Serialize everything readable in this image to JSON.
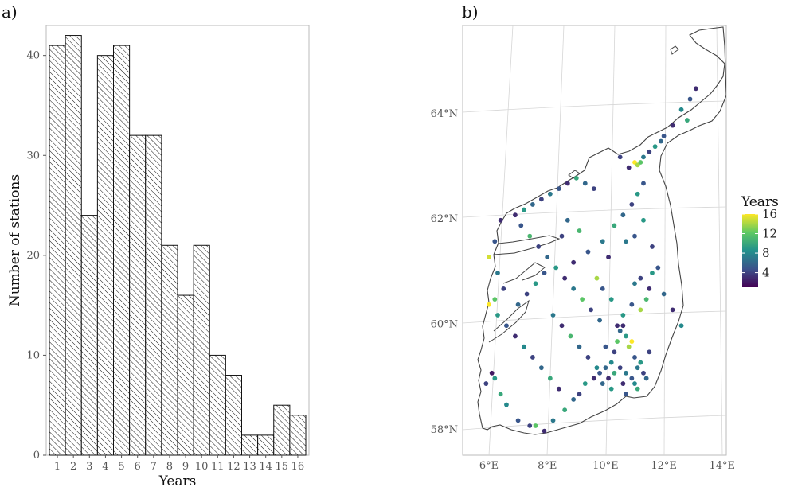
{
  "panels": {
    "a": {
      "label": "a)",
      "chart_data": {
        "type": "bar",
        "title": "",
        "xlabel": "Years",
        "ylabel": "Number of stations",
        "categories": [
          "1",
          "2",
          "3",
          "4",
          "5",
          "6",
          "7",
          "8",
          "9",
          "10",
          "11",
          "12",
          "13",
          "14",
          "15",
          "16"
        ],
        "values": [
          41,
          42,
          24,
          40,
          41,
          32,
          32,
          21,
          16,
          21,
          10,
          8,
          2,
          2,
          5,
          4
        ],
        "yticks": [
          "0",
          "10",
          "20",
          "30",
          "40"
        ],
        "ylim": [
          0,
          43
        ],
        "bar_fill": "hatched",
        "grid": false
      }
    },
    "b": {
      "label": "b)",
      "chart_data": {
        "type": "scatter",
        "map": true,
        "legend_title": "Years",
        "legend_ticks": [
          "16",
          "12",
          "8",
          "4"
        ],
        "legend_placement": "right",
        "color_scale": [
          "#440154",
          "#3b528b",
          "#21918c",
          "#5ec962",
          "#fde725"
        ],
        "color_range": [
          1,
          16
        ],
        "lon_ticks": [
          "6°E",
          "8°E",
          "10°E",
          "12°E",
          "14°E"
        ],
        "lat_ticks": [
          "58°N",
          "60°N",
          "62°N",
          "64°N"
        ],
        "lon_range": [
          5,
          15
        ],
        "lat_range": [
          57.5,
          65.5
        ],
        "points": [
          [
            6.1,
            59.0,
            2
          ],
          [
            6.2,
            58.9,
            9
          ],
          [
            5.9,
            58.8,
            4
          ],
          [
            6.4,
            58.6,
            10
          ],
          [
            6.6,
            58.4,
            8
          ],
          [
            7.0,
            58.1,
            5
          ],
          [
            7.4,
            58.0,
            4
          ],
          [
            7.6,
            58.0,
            12
          ],
          [
            7.9,
            57.9,
            3
          ],
          [
            8.2,
            58.1,
            7
          ],
          [
            8.6,
            58.3,
            10
          ],
          [
            8.9,
            58.5,
            6
          ],
          [
            9.1,
            58.6,
            4
          ],
          [
            9.3,
            58.8,
            9
          ],
          [
            9.6,
            58.9,
            3
          ],
          [
            9.8,
            59.0,
            5
          ],
          [
            10.0,
            59.1,
            6
          ],
          [
            10.2,
            59.2,
            8
          ],
          [
            10.3,
            59.4,
            4
          ],
          [
            10.4,
            59.6,
            12
          ],
          [
            10.5,
            59.8,
            6
          ],
          [
            10.6,
            59.9,
            3
          ],
          [
            10.7,
            59.7,
            9
          ],
          [
            10.8,
            59.5,
            14
          ],
          [
            10.9,
            59.6,
            16
          ],
          [
            11.0,
            59.3,
            5
          ],
          [
            11.1,
            59.1,
            7
          ],
          [
            11.2,
            59.2,
            9
          ],
          [
            11.3,
            59.0,
            4
          ],
          [
            11.4,
            58.9,
            6
          ],
          [
            10.1,
            58.9,
            3
          ],
          [
            10.3,
            59.0,
            10
          ],
          [
            10.5,
            59.1,
            4
          ],
          [
            10.7,
            59.0,
            7
          ],
          [
            10.9,
            58.9,
            5
          ],
          [
            11.0,
            58.8,
            8
          ],
          [
            10.6,
            58.8,
            3
          ],
          [
            10.2,
            58.7,
            9
          ],
          [
            9.9,
            58.8,
            6
          ],
          [
            10.0,
            59.5,
            5
          ],
          [
            10.4,
            59.9,
            3
          ],
          [
            10.6,
            60.1,
            9
          ],
          [
            10.9,
            60.3,
            5
          ],
          [
            11.2,
            60.2,
            14
          ],
          [
            11.4,
            60.4,
            11
          ],
          [
            11.5,
            60.6,
            3
          ],
          [
            11.0,
            60.7,
            7
          ],
          [
            11.2,
            60.8,
            4
          ],
          [
            11.6,
            60.9,
            9
          ],
          [
            11.8,
            61.0,
            5
          ],
          [
            9.8,
            60.0,
            6
          ],
          [
            9.5,
            60.2,
            4
          ],
          [
            9.2,
            60.4,
            12
          ],
          [
            8.9,
            60.6,
            7
          ],
          [
            8.6,
            60.8,
            3
          ],
          [
            8.3,
            61.0,
            9
          ],
          [
            8.0,
            61.2,
            6
          ],
          [
            7.7,
            61.4,
            4
          ],
          [
            7.4,
            61.6,
            11
          ],
          [
            7.1,
            61.8,
            5
          ],
          [
            6.9,
            62.0,
            3
          ],
          [
            7.2,
            62.1,
            9
          ],
          [
            7.5,
            62.2,
            6
          ],
          [
            7.8,
            62.3,
            4
          ],
          [
            8.1,
            62.4,
            7
          ],
          [
            8.4,
            62.5,
            5
          ],
          [
            8.7,
            62.6,
            3
          ],
          [
            9.0,
            62.7,
            10
          ],
          [
            9.3,
            62.6,
            6
          ],
          [
            9.6,
            62.5,
            4
          ],
          [
            6.4,
            61.9,
            3
          ],
          [
            6.2,
            61.5,
            5
          ],
          [
            6.0,
            61.2,
            15
          ],
          [
            6.3,
            60.9,
            7
          ],
          [
            6.5,
            60.6,
            4
          ],
          [
            6.2,
            60.4,
            12
          ],
          [
            6.0,
            60.3,
            16
          ],
          [
            6.3,
            60.1,
            9
          ],
          [
            6.6,
            59.9,
            5
          ],
          [
            6.9,
            59.7,
            3
          ],
          [
            7.2,
            59.5,
            8
          ],
          [
            7.5,
            59.3,
            4
          ],
          [
            7.8,
            59.1,
            6
          ],
          [
            8.1,
            58.9,
            10
          ],
          [
            8.4,
            58.7,
            3
          ],
          [
            7.0,
            60.3,
            6
          ],
          [
            7.3,
            60.5,
            4
          ],
          [
            7.6,
            60.7,
            9
          ],
          [
            7.9,
            60.9,
            5
          ],
          [
            8.2,
            60.1,
            7
          ],
          [
            8.5,
            59.9,
            3
          ],
          [
            8.8,
            59.7,
            11
          ],
          [
            9.1,
            59.5,
            6
          ],
          [
            9.4,
            59.3,
            4
          ],
          [
            9.7,
            59.1,
            8
          ],
          [
            10.3,
            61.8,
            10
          ],
          [
            10.6,
            62.0,
            6
          ],
          [
            10.9,
            62.2,
            4
          ],
          [
            11.1,
            62.4,
            9
          ],
          [
            11.3,
            62.6,
            5
          ],
          [
            10.8,
            62.9,
            3
          ],
          [
            11.0,
            63.0,
            16
          ],
          [
            11.1,
            62.95,
            14
          ],
          [
            11.2,
            63.0,
            12
          ],
          [
            11.3,
            63.1,
            7
          ],
          [
            11.5,
            63.2,
            4
          ],
          [
            11.7,
            63.3,
            9
          ],
          [
            12.0,
            63.5,
            5
          ],
          [
            12.3,
            63.7,
            3
          ],
          [
            12.6,
            64.0,
            8
          ],
          [
            12.9,
            64.2,
            5
          ],
          [
            13.1,
            64.4,
            3
          ],
          [
            12.8,
            63.8,
            10
          ],
          [
            11.9,
            63.4,
            6
          ],
          [
            10.5,
            63.1,
            4
          ],
          [
            9.9,
            61.5,
            7
          ],
          [
            10.1,
            61.2,
            3
          ],
          [
            9.7,
            60.8,
            14
          ],
          [
            9.9,
            60.6,
            5
          ],
          [
            10.2,
            60.4,
            9
          ],
          [
            8.7,
            61.9,
            6
          ],
          [
            8.5,
            61.6,
            4
          ],
          [
            9.1,
            61.7,
            11
          ],
          [
            9.4,
            61.3,
            5
          ],
          [
            8.9,
            61.1,
            3
          ],
          [
            10.7,
            61.5,
            7
          ],
          [
            11.0,
            61.6,
            5
          ],
          [
            11.3,
            61.9,
            9
          ],
          [
            11.6,
            61.4,
            4
          ],
          [
            12.0,
            60.5,
            6
          ],
          [
            12.3,
            60.2,
            3
          ],
          [
            12.6,
            59.9,
            8
          ],
          [
            10.7,
            58.6,
            5
          ],
          [
            11.1,
            58.7,
            10
          ],
          [
            11.5,
            59.4,
            4
          ]
        ]
      }
    }
  }
}
